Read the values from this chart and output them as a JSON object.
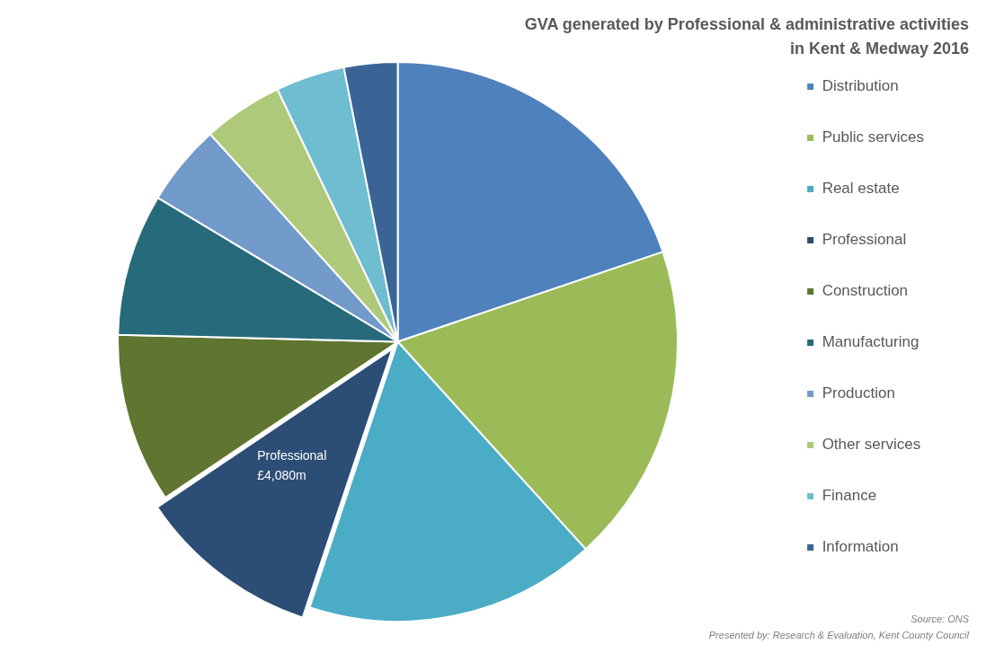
{
  "chart_data": {
    "type": "pie",
    "title": "GVA generated by Professional & administrative activities\nin Kent & Medway 2016",
    "categories": [
      "Distribution",
      "Public services",
      "Real estate",
      "Professional",
      "Construction",
      "Manufacturing",
      "Production",
      "Other services",
      "Finance",
      "Information"
    ],
    "values": [
      7690,
      7190,
      6530,
      4080,
      3810,
      3190,
      1830,
      1790,
      1550,
      1200
    ],
    "colors": [
      "#4f81bd",
      "#9bbb59",
      "#4bacc6",
      "#2c4d75",
      "#5f7530",
      "#276a7c",
      "#729aca",
      "#afc97a",
      "#6fbdd1",
      "#3a6496"
    ],
    "value_labels": [
      null,
      null,
      null,
      "£4,080m",
      null,
      null,
      null,
      null,
      null,
      null
    ],
    "legend": "right",
    "annotations": [
      "Source: ONS",
      "Presented by: Research & Evaluation, Kent County Council"
    ]
  }
}
